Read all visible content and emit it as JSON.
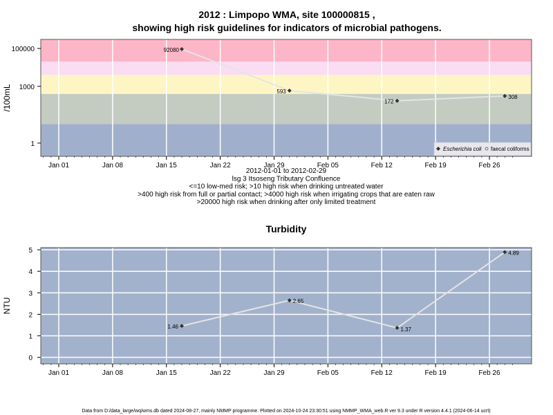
{
  "chart_data": [
    {
      "type": "line",
      "title": "2012 : Limpopo WMA, site 100000815 ,",
      "title2": "showing high risk guidelines for indicators of microbial pathogens.",
      "ylabel": "/100mL",
      "yscale": "log",
      "ylim": [
        0.2,
        300000
      ],
      "yticks": [
        1,
        1000,
        100000
      ],
      "ytick_labels": [
        "1",
        "1000",
        "100000"
      ],
      "x_dates": [
        "2012-01-17",
        "2012-01-31",
        "2012-02-14",
        "2012-02-28"
      ],
      "xtick_labels": [
        "Jan 01",
        "Jan 08",
        "Jan 15",
        "Jan 22",
        "Jan 29",
        "Feb 05",
        "Feb 12",
        "Feb 19",
        "Feb 26"
      ],
      "series": [
        {
          "name": "Escherichia coli",
          "values": [
            92080,
            593,
            172,
            308
          ],
          "labels": [
            "92080",
            "593",
            "172",
            "308"
          ]
        }
      ],
      "legend_extra": "faecal coliforms",
      "legend_position": "bottom-right",
      "bands": [
        {
          "range": [
            0.2,
            10
          ],
          "color": "#a0b0cc"
        },
        {
          "range": [
            10,
            400
          ],
          "color": "#c4ccc2"
        },
        {
          "range": [
            400,
            4000
          ],
          "color": "#fdf6c4"
        },
        {
          "range": [
            4000,
            20000
          ],
          "color": "#fadcf3"
        },
        {
          "range": [
            20000,
            300000
          ],
          "color": "#fdb6c8"
        }
      ],
      "caption": [
        "2012-01-01 to 2012-02-29",
        "lsg 3 Itsoseng Tributary Confluence",
        "<=10 low-med risk; >10 high risk when drinking untreated water",
        ">400 high risk from full or partial contact; >4000 high risk when irrigating crops that are eaten raw",
        ">20000 high risk when drinking after only limited treatment"
      ]
    },
    {
      "type": "line",
      "title": "Turbidity",
      "ylabel": "NTU",
      "ylim": [
        -0.3,
        5.1
      ],
      "yticks": [
        0,
        1,
        2,
        3,
        4,
        5
      ],
      "x_dates": [
        "2012-01-17",
        "2012-01-31",
        "2012-02-14",
        "2012-02-28"
      ],
      "xtick_labels": [
        "Jan 01",
        "Jan 08",
        "Jan 15",
        "Jan 22",
        "Jan 29",
        "Feb 05",
        "Feb 12",
        "Feb 19",
        "Feb 26"
      ],
      "series": [
        {
          "values": [
            1.46,
            2.65,
            1.37,
            4.89
          ],
          "labels": [
            "1.46",
            "2.65",
            "1.37",
            "4.89"
          ]
        }
      ],
      "background": "#a2b2cc"
    }
  ],
  "footer": "Data from D:/data_large/wq/wms.db dated 2024-08-27, mainly NMMP programme. Plotted on 2024-10-24 23:30:51 using NMMP_WMA_web.R ver 9.3 under R version 4.4.1 (2024-06-14 ucrt)",
  "colors": {
    "line": "#e4e4e4",
    "grid": "#ffffff",
    "marker": "#333333"
  }
}
